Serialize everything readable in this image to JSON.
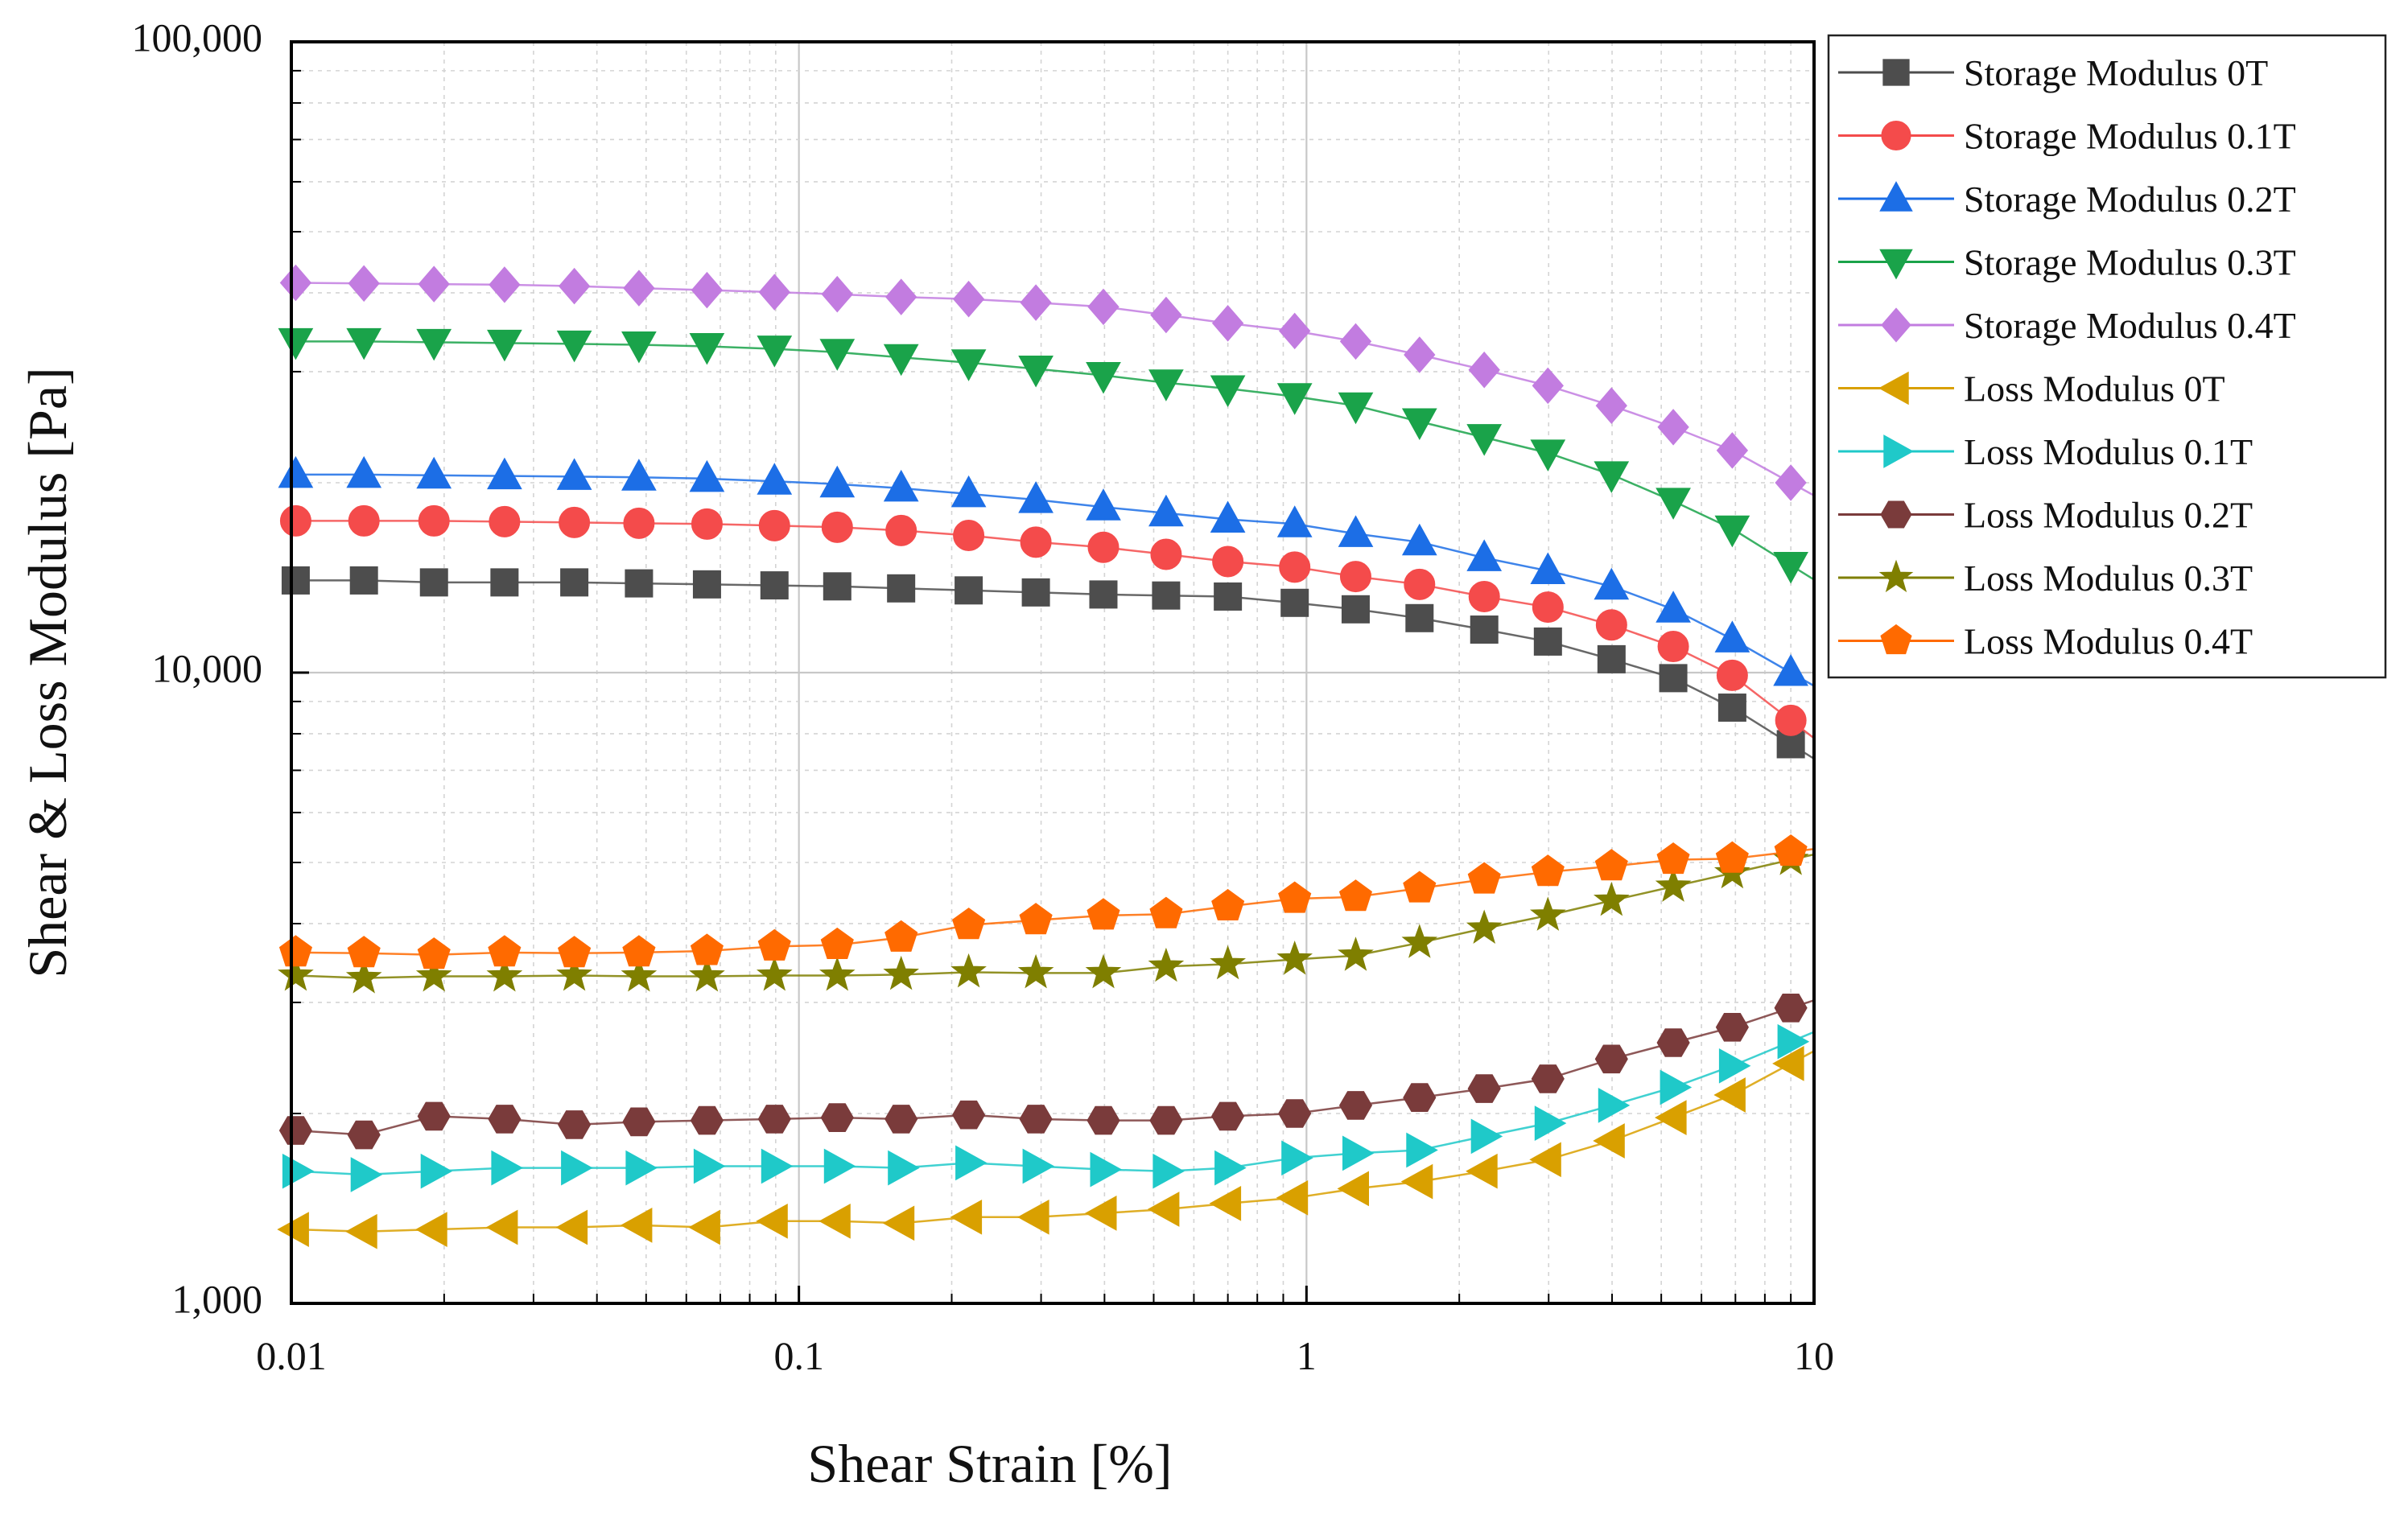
{
  "chart_data": {
    "type": "line",
    "title": "",
    "xlabel": "Shear Strain [%]",
    "ylabel": "Shear & Loss Modulus [Pa]",
    "xscale": "log",
    "yscale": "log",
    "xlim": [
      0.01,
      10
    ],
    "ylim": [
      1000,
      100000
    ],
    "grid": true,
    "legend_position": "outside-top-right",
    "x_ticks": [
      {
        "value": 0.01,
        "label": "0.01"
      },
      {
        "value": 0.1,
        "label": "0.1"
      },
      {
        "value": 1,
        "label": "1"
      },
      {
        "value": 10,
        "label": "10"
      }
    ],
    "y_ticks": [
      {
        "value": 1000,
        "label": "1,000"
      },
      {
        "value": 10000,
        "label": "10,000"
      },
      {
        "value": 100000,
        "label": "100,000"
      }
    ],
    "x": [
      0.0102,
      0.0139,
      0.0191,
      0.0263,
      0.0361,
      0.0484,
      0.0659,
      0.0895,
      0.119,
      0.159,
      0.216,
      0.293,
      0.398,
      0.529,
      0.7,
      0.948,
      1.25,
      1.67,
      2.24,
      2.99,
      3.99,
      5.28,
      6.9,
      9.0
    ],
    "series": [
      {
        "name": "Storage Modulus 0T",
        "color": "#4d4d4d",
        "marker": "square",
        "values": [
          14000,
          14000,
          13900,
          13900,
          13900,
          13850,
          13800,
          13750,
          13700,
          13600,
          13500,
          13400,
          13300,
          13250,
          13200,
          12900,
          12600,
          12200,
          11700,
          11200,
          10500,
          9800,
          8800,
          7700
        ]
      },
      {
        "name": "Storage Modulus 0.1T",
        "color": "#f44b4b",
        "marker": "circle",
        "values": [
          17400,
          17400,
          17400,
          17350,
          17300,
          17250,
          17200,
          17100,
          17000,
          16800,
          16500,
          16100,
          15800,
          15400,
          15000,
          14700,
          14200,
          13800,
          13200,
          12700,
          11900,
          11000,
          9900,
          8400
        ]
      },
      {
        "name": "Storage Modulus 0.2T",
        "color": "#1c6ee6",
        "marker": "triangle-up",
        "values": [
          20600,
          20600,
          20550,
          20500,
          20450,
          20400,
          20300,
          20100,
          19900,
          19600,
          19200,
          18800,
          18300,
          17900,
          17500,
          17200,
          16600,
          16100,
          15200,
          14500,
          13700,
          12600,
          11300,
          10000
        ]
      },
      {
        "name": "Storage Modulus 0.3T",
        "color": "#1aa34a",
        "marker": "triangle-down",
        "values": [
          33500,
          33500,
          33400,
          33300,
          33200,
          33100,
          32900,
          32600,
          32200,
          31600,
          31000,
          30300,
          29600,
          28800,
          28200,
          27400,
          26500,
          25000,
          23600,
          22300,
          20600,
          18700,
          16900,
          14800
        ]
      },
      {
        "name": "Storage Modulus 0.4T",
        "color": "#c27ce0",
        "marker": "diamond",
        "values": [
          41500,
          41400,
          41300,
          41200,
          41000,
          40700,
          40400,
          40100,
          39800,
          39400,
          39100,
          38600,
          38000,
          36900,
          35800,
          34800,
          33500,
          31900,
          30200,
          28500,
          26500,
          24500,
          22500,
          20000
        ]
      },
      {
        "name": "Loss Modulus 0T",
        "color": "#d9a000",
        "marker": "triangle-left",
        "values": [
          1310,
          1300,
          1310,
          1320,
          1320,
          1330,
          1320,
          1350,
          1350,
          1340,
          1370,
          1370,
          1390,
          1410,
          1440,
          1470,
          1520,
          1560,
          1620,
          1690,
          1810,
          1970,
          2140,
          2400
        ]
      },
      {
        "name": "Loss Modulus 0.1T",
        "color": "#1fc9c9",
        "marker": "triangle-right",
        "values": [
          1620,
          1600,
          1620,
          1640,
          1640,
          1640,
          1650,
          1650,
          1650,
          1640,
          1670,
          1650,
          1630,
          1620,
          1640,
          1700,
          1730,
          1750,
          1840,
          1930,
          2060,
          2200,
          2380,
          2600
        ]
      },
      {
        "name": "Loss Modulus 0.2T",
        "color": "#7a3b3b",
        "marker": "hexagon",
        "values": [
          1880,
          1850,
          1980,
          1960,
          1920,
          1940,
          1950,
          1960,
          1970,
          1960,
          1990,
          1960,
          1950,
          1950,
          1980,
          2000,
          2060,
          2120,
          2190,
          2270,
          2440,
          2590,
          2740,
          2940
        ]
      },
      {
        "name": "Loss Modulus 0.3T",
        "color": "#7f7f00",
        "marker": "star",
        "values": [
          3310,
          3280,
          3300,
          3300,
          3310,
          3300,
          3300,
          3310,
          3310,
          3320,
          3350,
          3340,
          3340,
          3420,
          3450,
          3510,
          3560,
          3730,
          3930,
          4120,
          4350,
          4580,
          4810,
          5050
        ]
      },
      {
        "name": "Loss Modulus 0.4T",
        "color": "#ff6a00",
        "marker": "pentagon",
        "values": [
          3600,
          3590,
          3570,
          3600,
          3590,
          3600,
          3620,
          3680,
          3700,
          3800,
          3980,
          4050,
          4120,
          4140,
          4260,
          4380,
          4410,
          4550,
          4700,
          4830,
          4930,
          5050,
          5070,
          5200
        ]
      }
    ]
  }
}
